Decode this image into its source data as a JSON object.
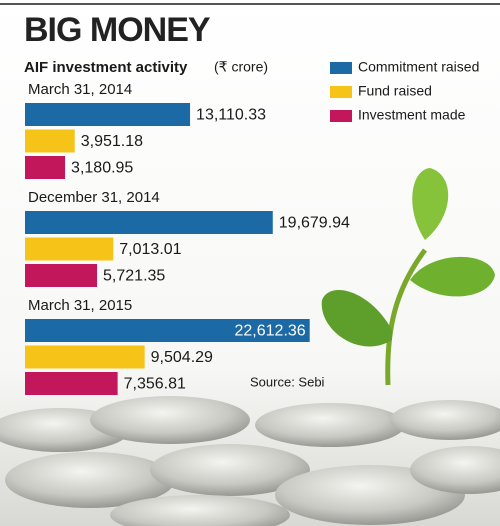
{
  "chart_data": {
    "type": "bar",
    "orientation": "horizontal",
    "title": "BIG MONEY",
    "subtitle": "AIF investment activity",
    "unit": "(₹ crore)",
    "source": "Source: Sebi",
    "categories": [
      "March 31, 2014",
      "December 31, 2014",
      "March 31, 2015"
    ],
    "series": [
      {
        "name": "Commitment raised",
        "color": "#1b6aa5",
        "values": [
          13110.33,
          19679.94,
          22612.36
        ],
        "value_labels": [
          "13,110.33",
          "19,679.94",
          "22,612.36"
        ]
      },
      {
        "name": "Fund raised",
        "color": "#f6c419",
        "values": [
          3951.18,
          7013.01,
          9504.29
        ],
        "value_labels": [
          "3,951.18",
          "7,013.01",
          "9,504.29"
        ]
      },
      {
        "name": "Investment made",
        "color": "#c2185b",
        "values": [
          3180.95,
          5721.35,
          7356.81
        ],
        "value_labels": [
          "3,180.95",
          "5,721.35",
          "7,356.81"
        ]
      }
    ]
  }
}
